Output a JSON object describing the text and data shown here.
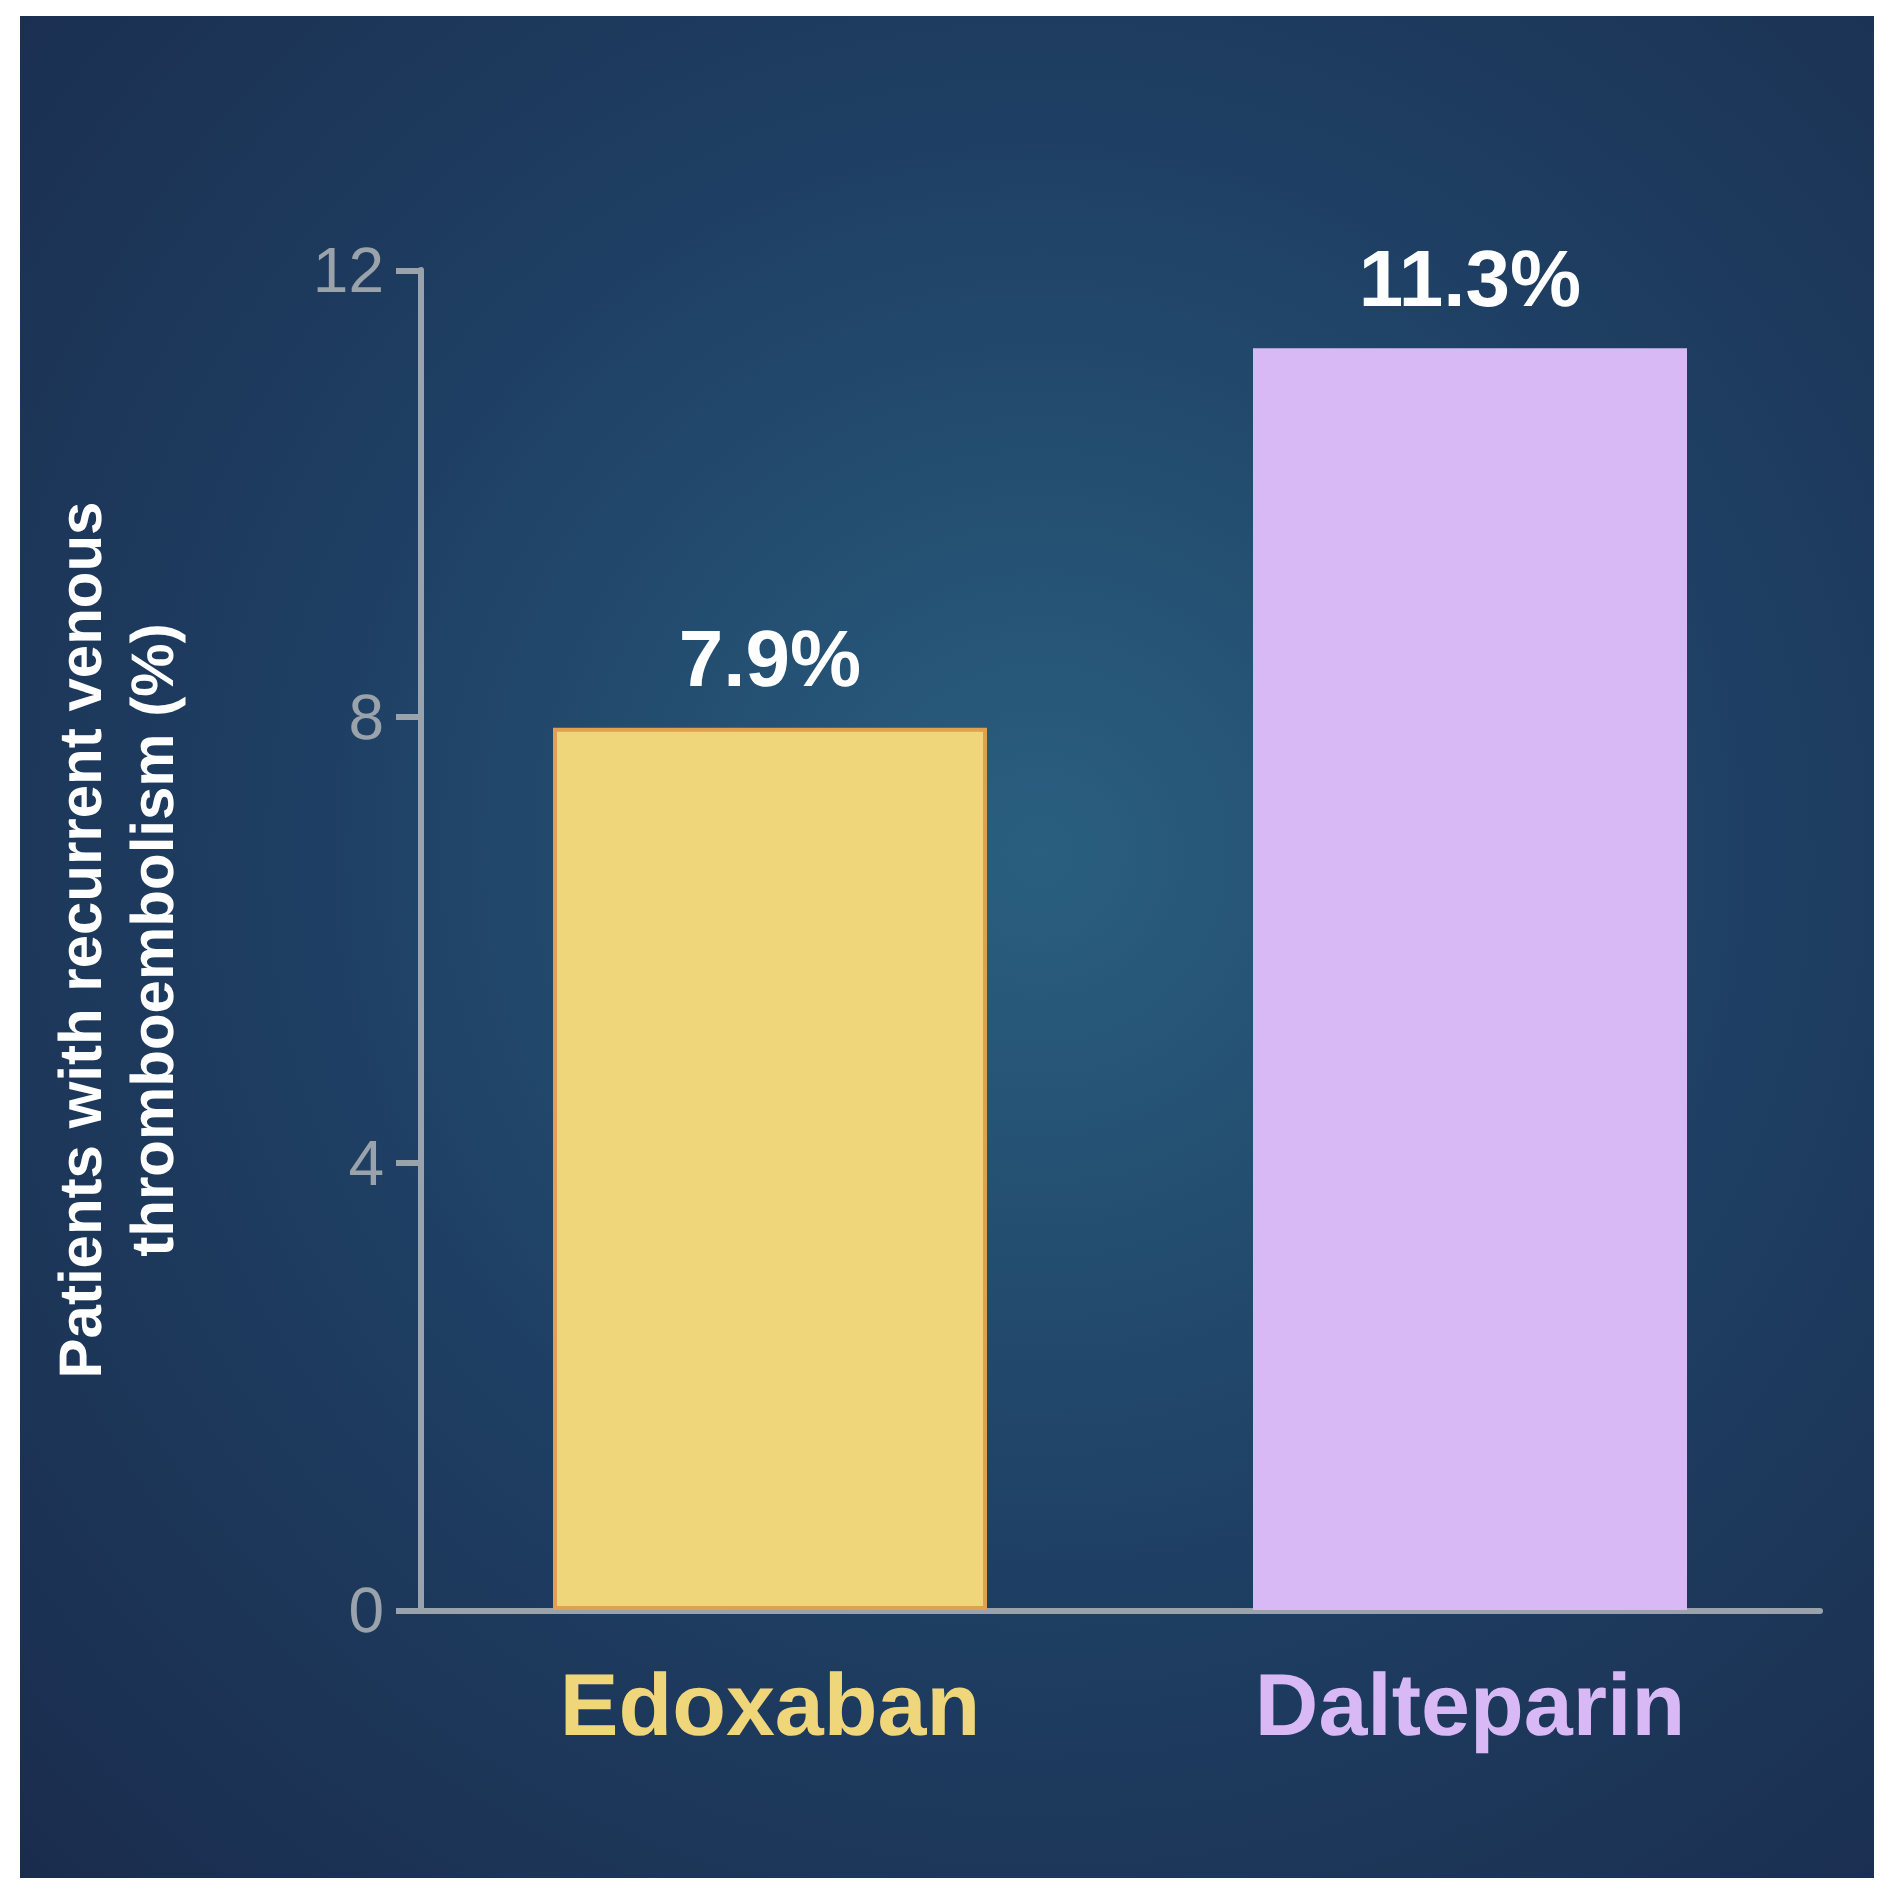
{
  "chart_data": {
    "type": "bar",
    "ylabel": "Patients with recurrent venous\nthromboembolism (%)",
    "categories": [
      "Edoxaban",
      "Dalteparin"
    ],
    "values": [
      7.9,
      11.3
    ],
    "colors": [
      "#f0d67a",
      "#d8b9f6"
    ],
    "value_labels": [
      "7.9%",
      "11.3%"
    ],
    "ylim": [
      0,
      12
    ],
    "yticks": [
      0,
      4,
      8,
      12
    ]
  }
}
